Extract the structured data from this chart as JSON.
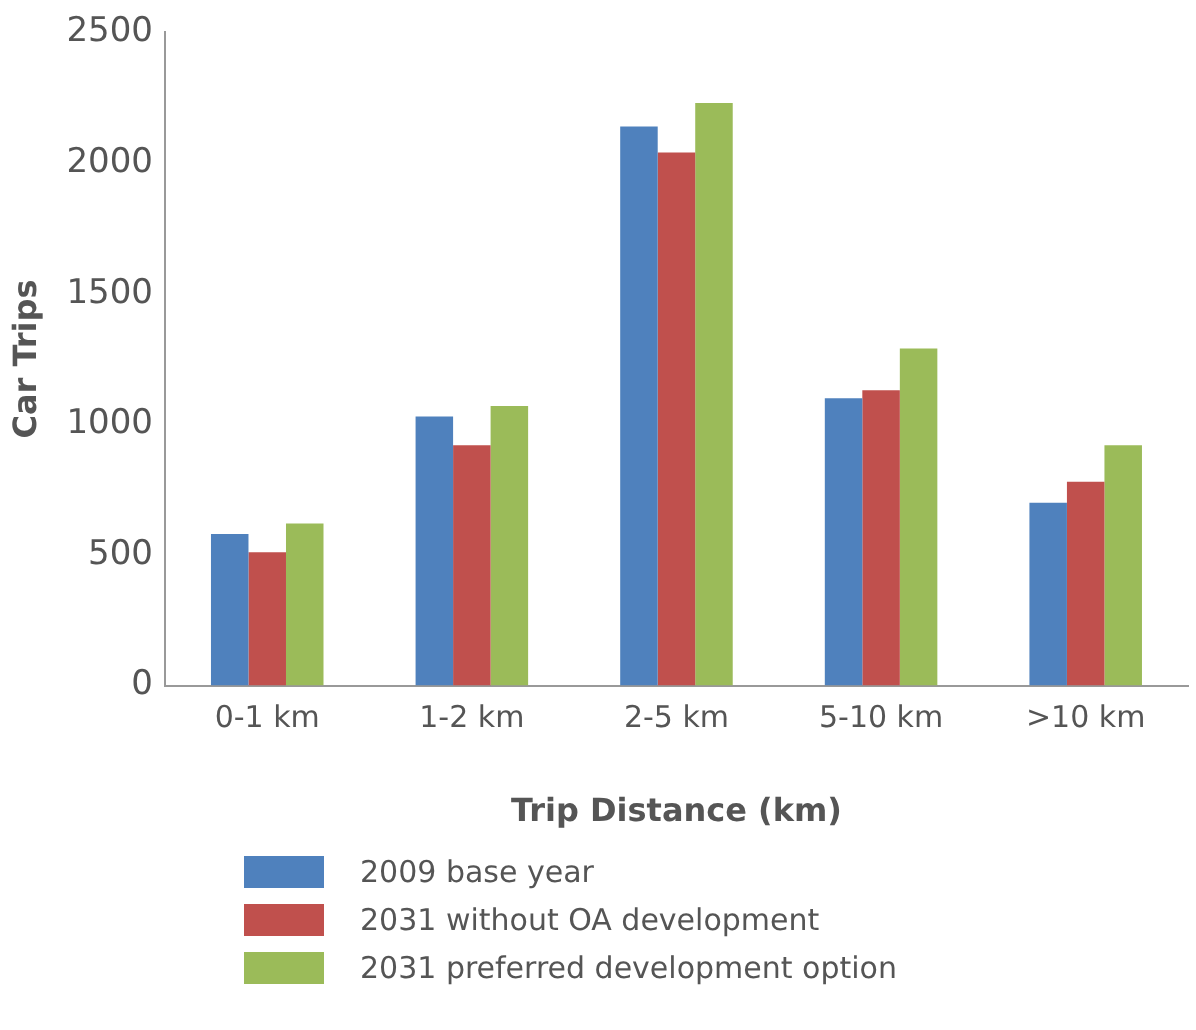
{
  "chart_data": {
    "type": "bar",
    "xlabel": "Trip Distance (km)",
    "ylabel": "Car Trips",
    "categories": [
      "0-1 km",
      "1-2 km",
      "2-5 km",
      "5-10 km",
      ">10 km"
    ],
    "series": [
      {
        "name": "2009 base year",
        "color": "#4f81bd",
        "values": [
          580,
          1030,
          2140,
          1100,
          700
        ]
      },
      {
        "name": "2031 without OA development",
        "color": "#c0504d",
        "values": [
          510,
          920,
          2040,
          1130,
          780
        ]
      },
      {
        "name": "2031 preferred development option",
        "color": "#9bbb59",
        "values": [
          620,
          1070,
          2230,
          1290,
          920
        ]
      }
    ],
    "ylim": [
      0,
      2500
    ],
    "yticks": [
      0,
      500,
      1000,
      1500,
      2000,
      2500
    ],
    "grid": false,
    "legend": "bottom"
  }
}
